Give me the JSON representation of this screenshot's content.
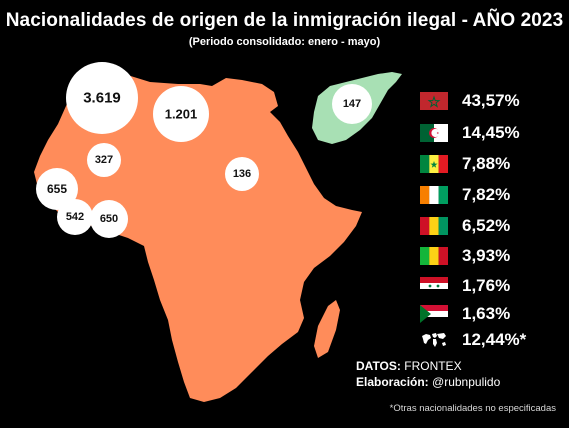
{
  "title": "Nacionalidades de origen de la inmigración ilegal - AÑO 2023",
  "subtitle": "(Periodo consolidado: enero - mayo)",
  "colors": {
    "africa": "#FF8C5A",
    "syria": "#A8E0B4",
    "bubble": "#FFFFFF"
  },
  "map_bubbles": [
    {
      "id": "morocco",
      "label": "3.619"
    },
    {
      "id": "algeria",
      "label": "1.201"
    },
    {
      "id": "mali",
      "label": "327"
    },
    {
      "id": "chad",
      "label": "136"
    },
    {
      "id": "senegal",
      "label": "655"
    },
    {
      "id": "guinea",
      "label": "542"
    },
    {
      "id": "ivory-coast",
      "label": "650"
    },
    {
      "id": "syria",
      "label": "147"
    }
  ],
  "legend": [
    {
      "country": "Marruecos",
      "flag": "morocco",
      "pct": "43,57%"
    },
    {
      "country": "Argelia",
      "flag": "algeria",
      "pct": "14,45%"
    },
    {
      "country": "Senegal",
      "flag": "senegal",
      "pct": "7,88%"
    },
    {
      "country": "Costa de Marfil",
      "flag": "ivory-coast",
      "pct": "7,82%"
    },
    {
      "country": "Guinea",
      "flag": "guinea",
      "pct": "6,52%"
    },
    {
      "country": "Mali",
      "flag": "mali",
      "pct": "3,93%"
    },
    {
      "country": "Siria",
      "flag": "syria",
      "pct": "1,76%"
    },
    {
      "country": "Sudán",
      "flag": "sudan",
      "pct": "1,63%"
    },
    {
      "country": "Otros",
      "flag": "world-icon",
      "pct": "12,44%*"
    }
  ],
  "credits": {
    "datos_label": "DATOS:",
    "datos_value": "FRONTEX",
    "elab_label": "Elaboración:",
    "elab_value": "@rubnpulido"
  },
  "footnote": "*Otras nacionalidades no especificadas"
}
